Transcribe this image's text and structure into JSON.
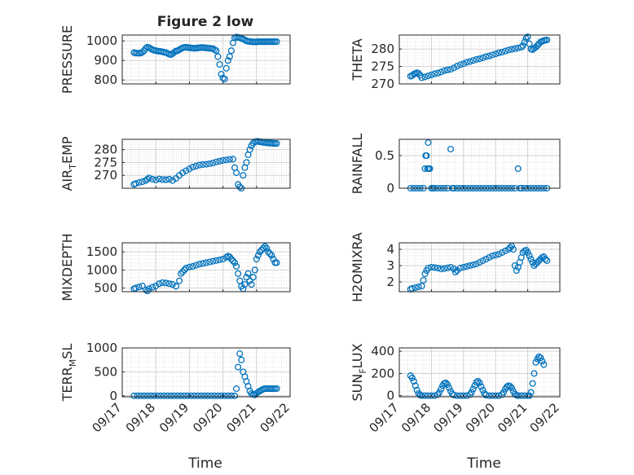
{
  "figure_title": "Figure 2 low",
  "marker_color": "#0072bd",
  "chart_data": [
    {
      "type": "scatter",
      "ylabel": "PRESSURE",
      "ylim": [
        780,
        1030
      ],
      "yticks": [
        800,
        900,
        1000
      ],
      "xlim": [
        17,
        22
      ],
      "xticks": [
        "09/17",
        "09/18",
        "09/19",
        "09/20",
        "09/21",
        "09/22"
      ],
      "show_xticklabels": false,
      "grid": true,
      "x": [
        17.35,
        17.4,
        17.45,
        17.5,
        17.55,
        17.6,
        17.65,
        17.7,
        17.75,
        17.8,
        17.85,
        17.9,
        17.95,
        18.0,
        18.05,
        18.1,
        18.15,
        18.2,
        18.25,
        18.3,
        18.35,
        18.4,
        18.45,
        18.5,
        18.55,
        18.6,
        18.65,
        18.7,
        18.75,
        18.8,
        18.85,
        18.9,
        18.95,
        19.0,
        19.05,
        19.1,
        19.15,
        19.2,
        19.25,
        19.3,
        19.35,
        19.4,
        19.45,
        19.5,
        19.55,
        19.6,
        19.65,
        19.7,
        19.75,
        19.8,
        19.85,
        19.9,
        19.95,
        20.0,
        20.05,
        20.1,
        20.15,
        20.2,
        20.25,
        20.3,
        20.35,
        20.4,
        20.45,
        20.5,
        20.55,
        20.6,
        20.65,
        20.7,
        20.75,
        20.8,
        20.85,
        20.9,
        20.95,
        21.0,
        21.05,
        21.1,
        21.15,
        21.2,
        21.25,
        21.3,
        21.35,
        21.4,
        21.45,
        21.5,
        21.55,
        21.6
      ],
      "y": [
        940,
        938,
        937,
        937,
        938,
        942,
        950,
        962,
        968,
        965,
        960,
        955,
        952,
        950,
        948,
        947,
        946,
        944,
        942,
        940,
        936,
        932,
        930,
        935,
        942,
        948,
        950,
        955,
        960,
        964,
        967,
        968,
        966,
        965,
        964,
        963,
        962,
        963,
        964,
        965,
        966,
        966,
        965,
        964,
        963,
        962,
        961,
        960,
        955,
        950,
        920,
        880,
        830,
        810,
        805,
        860,
        900,
        920,
        950,
        990,
        1015,
        1020,
        1018,
        1016,
        1012,
        1010,
        1005,
        1000,
        998,
        997,
        996,
        995,
        995,
        995,
        996,
        996,
        996,
        996,
        996,
        996,
        996,
        996,
        996,
        996,
        996,
        996
      ]
    },
    {
      "type": "scatter",
      "ylabel": "THETA",
      "ylim": [
        270,
        284
      ],
      "yticks": [
        270,
        275,
        280
      ],
      "xlim": [
        17,
        22
      ],
      "xticks": [
        "09/17",
        "09/18",
        "09/19",
        "09/20",
        "09/21",
        "09/22"
      ],
      "show_xticklabels": false,
      "grid": true,
      "x": [
        17.35,
        17.4,
        17.45,
        17.5,
        17.55,
        17.6,
        17.65,
        17.7,
        17.8,
        17.9,
        18.0,
        18.1,
        18.2,
        18.3,
        18.4,
        18.5,
        18.6,
        18.7,
        18.8,
        18.9,
        19.0,
        19.1,
        19.2,
        19.3,
        19.4,
        19.5,
        19.6,
        19.7,
        19.8,
        19.9,
        20.0,
        20.1,
        20.2,
        20.3,
        20.4,
        20.5,
        20.6,
        20.7,
        20.8,
        20.85,
        20.9,
        20.95,
        21.0,
        21.05,
        21.1,
        21.15,
        21.2,
        21.25,
        21.3,
        21.35,
        21.4,
        21.45,
        21.5,
        21.55,
        21.6
      ],
      "y": [
        272.2,
        272.4,
        272.8,
        273.0,
        273.2,
        273.0,
        272.5,
        271.8,
        272.0,
        272.3,
        272.6,
        272.9,
        273.1,
        273.4,
        273.8,
        274.0,
        274.2,
        274.6,
        275.1,
        275.5,
        275.8,
        276.2,
        276.4,
        276.7,
        277.0,
        277.2,
        277.5,
        277.8,
        278.0,
        278.3,
        278.6,
        278.9,
        279.1,
        279.4,
        279.7,
        279.9,
        280.1,
        280.3,
        280.5,
        281.0,
        282.0,
        283.0,
        283.5,
        281.5,
        280.0,
        279.8,
        280.2,
        280.5,
        281.0,
        281.5,
        282.0,
        282.2,
        282.4,
        282.5,
        282.6
      ]
    },
    {
      "type": "scatter",
      "ylabel": "AIR_TEMP",
      "ylim": [
        265,
        284
      ],
      "yticks": [
        270,
        275,
        280
      ],
      "xlim": [
        17,
        22
      ],
      "xticks": [
        "09/17",
        "09/18",
        "09/19",
        "09/20",
        "09/21",
        "09/22"
      ],
      "show_xticklabels": false,
      "grid": true,
      "x": [
        17.35,
        17.4,
        17.5,
        17.6,
        17.7,
        17.75,
        17.8,
        17.9,
        18.0,
        18.1,
        18.2,
        18.3,
        18.4,
        18.5,
        18.6,
        18.7,
        18.8,
        18.9,
        19.0,
        19.1,
        19.2,
        19.3,
        19.4,
        19.5,
        19.6,
        19.7,
        19.8,
        19.9,
        20.0,
        20.1,
        20.2,
        20.3,
        20.35,
        20.4,
        20.45,
        20.5,
        20.55,
        20.6,
        20.65,
        20.7,
        20.75,
        20.8,
        20.85,
        20.9,
        20.95,
        21.0,
        21.05,
        21.1,
        21.15,
        21.2,
        21.25,
        21.3,
        21.35,
        21.4,
        21.45,
        21.5,
        21.55,
        21.6
      ],
      "y": [
        266.5,
        266.8,
        267.2,
        267.5,
        268.0,
        268.5,
        269.0,
        268.5,
        268.2,
        268.6,
        268.4,
        268.3,
        268.5,
        268.0,
        268.8,
        270.0,
        271.0,
        271.8,
        272.5,
        273.2,
        273.6,
        274.0,
        274.2,
        274.3,
        274.5,
        274.8,
        275.2,
        275.5,
        275.8,
        276.0,
        276.2,
        276.3,
        273.0,
        271.0,
        266.5,
        265.5,
        265.0,
        270.0,
        273.0,
        275.0,
        278.0,
        280.0,
        281.5,
        282.5,
        283.0,
        283.2,
        283.2,
        283.0,
        283.0,
        282.8,
        282.8,
        282.6,
        282.6,
        282.5,
        282.5,
        282.4,
        282.4,
        282.4
      ]
    },
    {
      "type": "scatter",
      "ylabel": "RAINFALL",
      "ylim": [
        0,
        0.75
      ],
      "yticks": [
        0,
        0.5
      ],
      "xlim": [
        17,
        22
      ],
      "xticks": [
        "09/17",
        "09/18",
        "09/19",
        "09/20",
        "09/21",
        "09/22"
      ],
      "show_xticklabels": false,
      "grid": true,
      "x": [
        17.35,
        17.45,
        17.55,
        17.65,
        17.75,
        17.8,
        17.82,
        17.85,
        17.88,
        17.9,
        17.92,
        17.95,
        18.0,
        18.05,
        18.1,
        18.2,
        18.3,
        18.4,
        18.5,
        18.6,
        18.65,
        18.7,
        18.8,
        18.9,
        19.0,
        19.1,
        19.2,
        19.3,
        19.4,
        19.5,
        19.6,
        19.7,
        19.8,
        19.9,
        20.0,
        20.1,
        20.2,
        20.3,
        20.4,
        20.5,
        20.6,
        20.7,
        20.75,
        20.8,
        20.9,
        21.0,
        21.1,
        21.2,
        21.3,
        21.4,
        21.5,
        21.6
      ],
      "y": [
        0,
        0,
        0,
        0,
        0,
        0.3,
        0.5,
        0.5,
        0.3,
        0.7,
        0.3,
        0.3,
        0,
        0,
        0,
        0,
        0,
        0,
        0,
        0.6,
        0,
        0,
        0,
        0,
        0,
        0,
        0,
        0,
        0,
        0,
        0,
        0,
        0,
        0,
        0,
        0,
        0,
        0,
        0,
        0,
        0,
        0.3,
        0,
        0,
        0,
        0,
        0,
        0,
        0,
        0,
        0,
        0
      ]
    },
    {
      "type": "scatter",
      "ylabel": "MIXDEPTH",
      "ylim": [
        400,
        1750
      ],
      "yticks": [
        500,
        1000,
        1500
      ],
      "xlim": [
        17,
        22
      ],
      "xticks": [
        "09/17",
        "09/18",
        "09/19",
        "09/20",
        "09/21",
        "09/22"
      ],
      "show_xticklabels": false,
      "grid": true,
      "x": [
        17.35,
        17.4,
        17.5,
        17.6,
        17.7,
        17.75,
        17.8,
        17.9,
        18.0,
        18.1,
        18.2,
        18.3,
        18.4,
        18.5,
        18.6,
        18.7,
        18.75,
        18.8,
        18.85,
        18.9,
        19.0,
        19.1,
        19.2,
        19.3,
        19.4,
        19.5,
        19.6,
        19.7,
        19.8,
        19.9,
        20.0,
        20.1,
        20.15,
        20.2,
        20.25,
        20.3,
        20.35,
        20.4,
        20.45,
        20.5,
        20.55,
        20.6,
        20.65,
        20.7,
        20.75,
        20.8,
        20.85,
        20.9,
        20.95,
        21.0,
        21.05,
        21.1,
        21.15,
        21.2,
        21.25,
        21.3,
        21.35,
        21.4,
        21.45,
        21.5,
        21.55,
        21.6
      ],
      "y": [
        480,
        500,
        530,
        560,
        450,
        420,
        480,
        520,
        560,
        620,
        650,
        640,
        620,
        600,
        550,
        700,
        900,
        950,
        1000,
        1050,
        1080,
        1100,
        1130,
        1160,
        1180,
        1200,
        1220,
        1240,
        1260,
        1280,
        1300,
        1350,
        1380,
        1360,
        1300,
        1250,
        1200,
        1100,
        900,
        700,
        550,
        480,
        600,
        800,
        900,
        700,
        600,
        800,
        1000,
        1300,
        1400,
        1500,
        1550,
        1600,
        1650,
        1600,
        1500,
        1450,
        1400,
        1300,
        1200,
        1200
      ]
    },
    {
      "type": "scatter",
      "ylabel": "H2OMIXRA",
      "ylim": [
        1.4,
        4.4
      ],
      "yticks": [
        2,
        3,
        4
      ],
      "xlim": [
        17,
        22
      ],
      "xticks": [
        "09/17",
        "09/18",
        "09/19",
        "09/20",
        "09/21",
        "09/22"
      ],
      "show_xticklabels": false,
      "grid": true,
      "x": [
        17.35,
        17.4,
        17.5,
        17.6,
        17.7,
        17.75,
        17.8,
        17.85,
        17.9,
        18.0,
        18.1,
        18.2,
        18.3,
        18.4,
        18.5,
        18.6,
        18.7,
        18.75,
        18.8,
        18.9,
        19.0,
        19.1,
        19.2,
        19.3,
        19.4,
        19.5,
        19.6,
        19.7,
        19.8,
        19.9,
        20.0,
        20.1,
        20.2,
        20.3,
        20.4,
        20.45,
        20.5,
        20.55,
        20.6,
        20.65,
        20.7,
        20.75,
        20.8,
        20.85,
        20.9,
        20.95,
        21.0,
        21.05,
        21.1,
        21.15,
        21.2,
        21.25,
        21.3,
        21.35,
        21.4,
        21.45,
        21.5,
        21.55,
        21.6
      ],
      "y": [
        1.55,
        1.6,
        1.65,
        1.7,
        1.75,
        2.1,
        2.5,
        2.7,
        2.85,
        2.9,
        2.88,
        2.85,
        2.8,
        2.82,
        2.86,
        2.9,
        2.8,
        2.6,
        2.7,
        2.85,
        2.9,
        2.95,
        3.0,
        3.05,
        3.1,
        3.2,
        3.3,
        3.4,
        3.5,
        3.6,
        3.65,
        3.7,
        3.8,
        3.9,
        4.0,
        4.1,
        4.2,
        4.0,
        3.0,
        2.7,
        2.9,
        3.2,
        3.5,
        3.8,
        3.9,
        3.95,
        3.8,
        3.6,
        3.4,
        3.2,
        3.0,
        3.1,
        3.2,
        3.3,
        3.4,
        3.5,
        3.55,
        3.4,
        3.3
      ]
    },
    {
      "type": "scatter",
      "ylabel": "TERR_MSL",
      "ylim": [
        -20,
        1000
      ],
      "yticks": [
        0,
        500,
        1000
      ],
      "xlim": [
        17,
        22
      ],
      "xticks": [
        "09/17",
        "09/18",
        "09/19",
        "09/20",
        "09/21",
        "09/22"
      ],
      "show_xticklabels": true,
      "grid": true,
      "x": [
        17.35,
        17.45,
        17.55,
        17.65,
        17.75,
        17.85,
        17.95,
        18.05,
        18.15,
        18.25,
        18.35,
        18.45,
        18.55,
        18.65,
        18.75,
        18.85,
        18.95,
        19.05,
        19.15,
        19.25,
        19.35,
        19.45,
        19.55,
        19.65,
        19.75,
        19.85,
        19.95,
        20.05,
        20.15,
        20.25,
        20.35,
        20.4,
        20.45,
        20.5,
        20.55,
        20.6,
        20.65,
        20.7,
        20.75,
        20.8,
        20.85,
        20.9,
        20.95,
        21.0,
        21.05,
        21.1,
        21.15,
        21.2,
        21.25,
        21.3,
        21.35,
        21.4,
        21.45,
        21.5,
        21.55,
        21.6
      ],
      "y": [
        0,
        0,
        0,
        0,
        0,
        0,
        0,
        0,
        0,
        0,
        0,
        0,
        0,
        0,
        0,
        0,
        0,
        0,
        0,
        0,
        0,
        0,
        0,
        0,
        0,
        0,
        0,
        0,
        0,
        0,
        0,
        150,
        600,
        880,
        750,
        500,
        400,
        300,
        200,
        100,
        50,
        30,
        20,
        50,
        80,
        100,
        120,
        140,
        150,
        150,
        150,
        150,
        150,
        150,
        150,
        150
      ]
    },
    {
      "type": "scatter",
      "ylabel": "SUN_FLUX",
      "ylim": [
        -10,
        430
      ],
      "yticks": [
        0,
        200,
        400
      ],
      "xlim": [
        17,
        22
      ],
      "xticks": [
        "09/17",
        "09/18",
        "09/19",
        "09/20",
        "09/21",
        "09/22"
      ],
      "show_xticklabels": true,
      "grid": true,
      "x": [
        17.35,
        17.4,
        17.45,
        17.5,
        17.55,
        17.6,
        17.65,
        17.7,
        17.8,
        17.9,
        18.0,
        18.1,
        18.2,
        18.25,
        18.3,
        18.35,
        18.4,
        18.45,
        18.5,
        18.55,
        18.6,
        18.65,
        18.7,
        18.8,
        18.9,
        19.0,
        19.1,
        19.2,
        19.25,
        19.3,
        19.35,
        19.4,
        19.45,
        19.5,
        19.55,
        19.6,
        19.65,
        19.7,
        19.8,
        19.9,
        20.0,
        20.1,
        20.2,
        20.25,
        20.3,
        20.35,
        20.4,
        20.45,
        20.5,
        20.55,
        20.6,
        20.65,
        20.7,
        20.8,
        20.9,
        21.0,
        21.05,
        21.1,
        21.15,
        21.2,
        21.25,
        21.3,
        21.35,
        21.4,
        21.45,
        21.5
      ],
      "y": [
        180,
        160,
        130,
        90,
        50,
        20,
        5,
        0,
        0,
        0,
        0,
        0,
        10,
        30,
        60,
        90,
        110,
        115,
        100,
        70,
        40,
        15,
        5,
        0,
        0,
        0,
        0,
        10,
        30,
        60,
        90,
        120,
        130,
        115,
        80,
        50,
        20,
        5,
        0,
        0,
        0,
        0,
        10,
        30,
        60,
        80,
        90,
        85,
        70,
        40,
        15,
        5,
        0,
        0,
        0,
        0,
        0,
        30,
        110,
        200,
        300,
        330,
        350,
        340,
        310,
        280
      ]
    }
  ],
  "xlabel_left": "Time",
  "xlabel_right": "Time"
}
